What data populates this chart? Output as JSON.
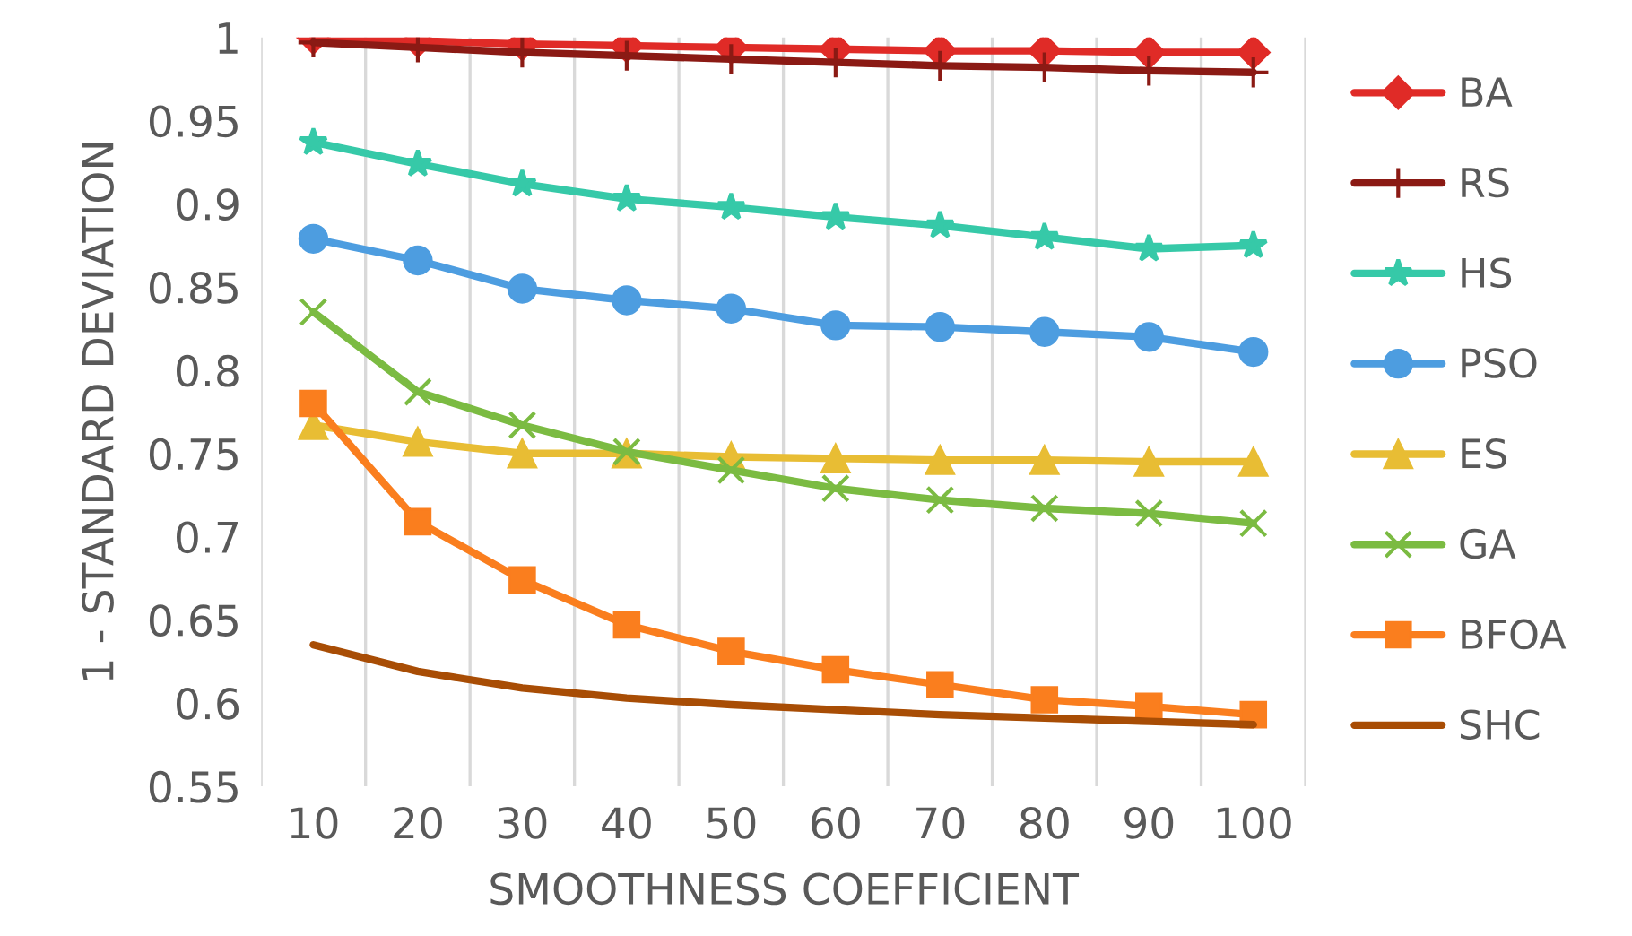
{
  "chart_data": {
    "type": "line",
    "xlabel": "SMOOTHNESS COEFFICIENT",
    "ylabel": "1 - STANDARD DEVIATION",
    "categories": [
      "10",
      "20",
      "30",
      "40",
      "50",
      "60",
      "70",
      "80",
      "90",
      "100"
    ],
    "ylim": [
      0.55,
      1
    ],
    "yticks": [
      0.55,
      0.6,
      0.65,
      0.7,
      0.75,
      0.8,
      0.85,
      0.9,
      0.95,
      1
    ],
    "grid": "x",
    "legend": "right",
    "series": [
      {
        "name": "BA",
        "color": "#e02b27",
        "marker": "diamond",
        "values": [
          1.0,
          0.998,
          0.996,
          0.995,
          0.994,
          0.993,
          0.992,
          0.992,
          0.991,
          0.991
        ]
      },
      {
        "name": "RS",
        "color": "#8b1a14",
        "marker": "plus",
        "values": [
          0.997,
          0.994,
          0.991,
          0.989,
          0.987,
          0.985,
          0.983,
          0.982,
          0.98,
          0.979
        ]
      },
      {
        "name": "HS",
        "color": "#36c9a8",
        "marker": "star",
        "values": [
          0.937,
          0.924,
          0.912,
          0.903,
          0.898,
          0.892,
          0.887,
          0.88,
          0.873,
          0.875
        ]
      },
      {
        "name": "PSO",
        "color": "#4d9de0",
        "marker": "circle",
        "values": [
          0.879,
          0.866,
          0.849,
          0.842,
          0.837,
          0.827,
          0.826,
          0.823,
          0.82,
          0.811
        ]
      },
      {
        "name": "ES",
        "color": "#e8bd34",
        "marker": "triangle",
        "values": [
          0.767,
          0.757,
          0.75,
          0.75,
          0.748,
          0.747,
          0.746,
          0.746,
          0.745,
          0.745
        ]
      },
      {
        "name": "GA",
        "color": "#7bbb42",
        "marker": "cross",
        "values": [
          0.835,
          0.787,
          0.767,
          0.751,
          0.74,
          0.729,
          0.722,
          0.717,
          0.714,
          0.708
        ]
      },
      {
        "name": "BFOA",
        "color": "#fa7e1e",
        "marker": "square",
        "values": [
          0.78,
          0.709,
          0.674,
          0.647,
          0.631,
          0.62,
          0.611,
          0.602,
          0.598,
          0.593
        ]
      },
      {
        "name": "SHC",
        "color": "#a84d05",
        "marker": "none",
        "values": [
          0.635,
          0.619,
          0.609,
          0.603,
          0.599,
          0.596,
          0.593,
          0.591,
          0.589,
          0.587
        ]
      }
    ]
  }
}
